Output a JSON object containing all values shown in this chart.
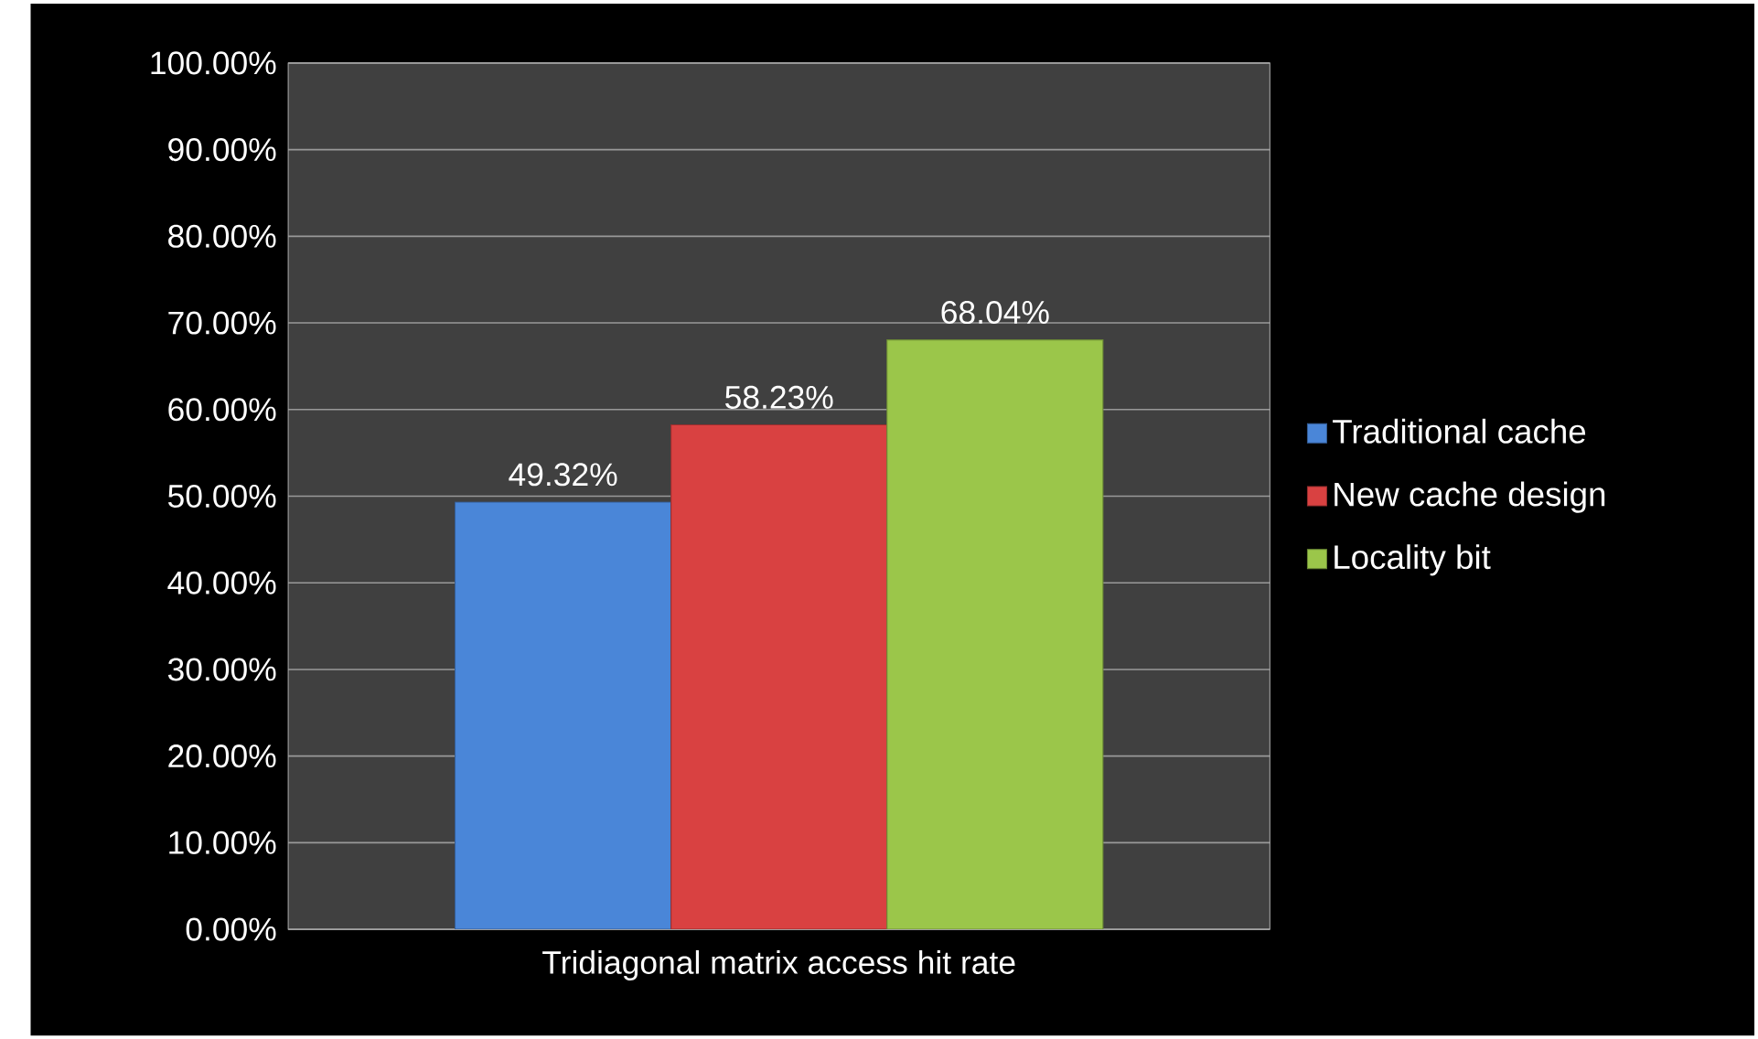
{
  "chart_data": {
    "type": "bar",
    "categories": [
      "Tridiagonal matrix access hit rate"
    ],
    "series": [
      {
        "name": "Traditional cache",
        "color": "#4a86d8",
        "values": [
          49.32
        ],
        "value_labels": [
          "49.32%"
        ]
      },
      {
        "name": "New cache design",
        "color": "#d94141",
        "values": [
          58.23
        ],
        "value_labels": [
          "58.23%"
        ]
      },
      {
        "name": "Locality bit",
        "color": "#9bc64a",
        "values": [
          68.04
        ],
        "value_labels": [
          "68.04%"
        ]
      }
    ],
    "ylim": [
      0,
      100
    ],
    "yticks": [
      {
        "value": 0,
        "label": "0.00%"
      },
      {
        "value": 10,
        "label": "10.00%"
      },
      {
        "value": 20,
        "label": "20.00%"
      },
      {
        "value": 30,
        "label": "30.00%"
      },
      {
        "value": 40,
        "label": "40.00%"
      },
      {
        "value": 50,
        "label": "50.00%"
      },
      {
        "value": 60,
        "label": "60.00%"
      },
      {
        "value": 70,
        "label": "70.00%"
      },
      {
        "value": 80,
        "label": "80.00%"
      },
      {
        "value": 90,
        "label": "90.00%"
      },
      {
        "value": 100,
        "label": "100.00%"
      }
    ],
    "grid": "y",
    "legend": "right"
  }
}
